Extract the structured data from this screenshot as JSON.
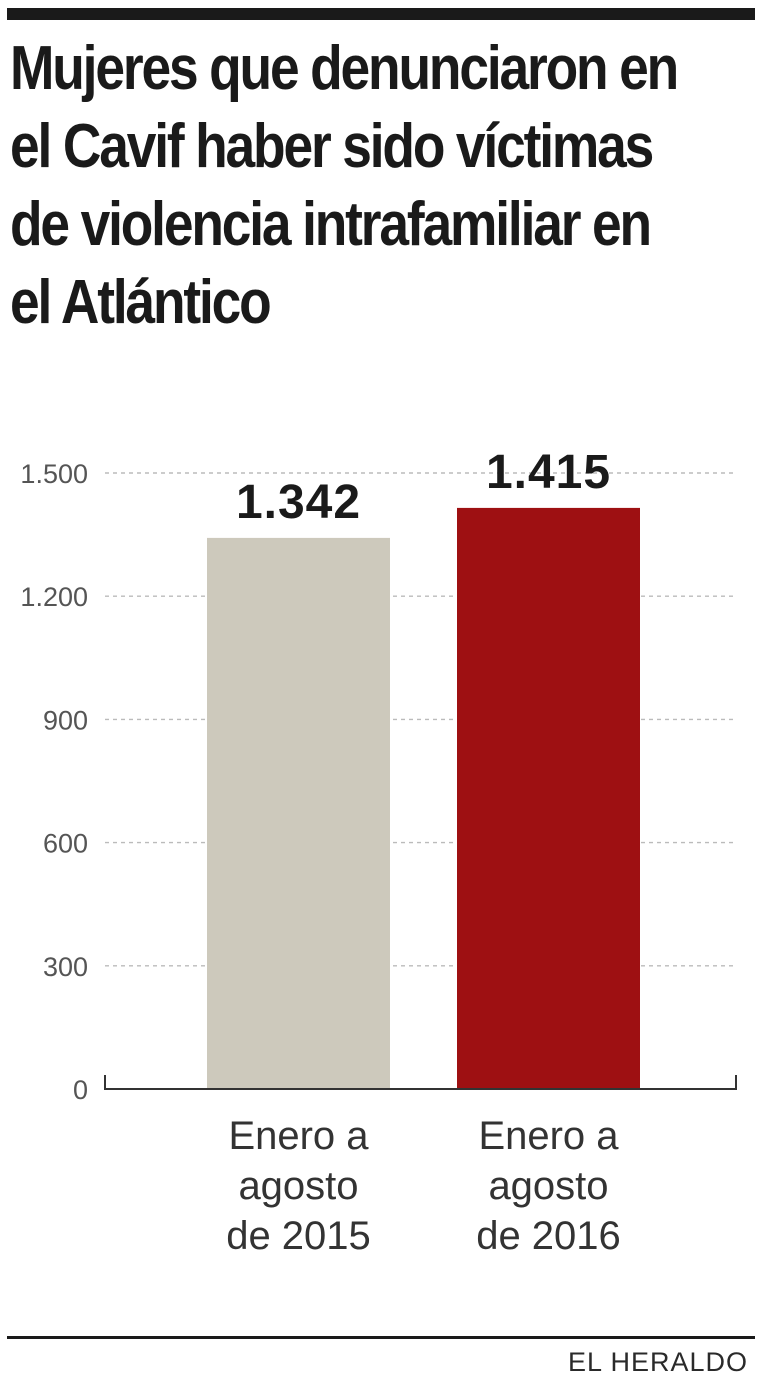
{
  "title_lines": [
    "Mujeres que denunciaron en",
    "el Cavif haber sido víctimas",
    "de violencia intrafamiliar en",
    "el Atlántico"
  ],
  "source": "EL HERALDO",
  "colors": {
    "bar_2015": "#cdc9bc",
    "bar_2016": "#9e1012",
    "text": "#1a1a1a",
    "tick": "#555555",
    "grid": "#bbbbbb"
  },
  "chart_data": {
    "type": "bar",
    "title": "Mujeres que denunciaron en el Cavif haber sido víctimas de violencia intrafamiliar en el Atlántico",
    "categories": [
      [
        "Enero a",
        "agosto",
        "de 2015"
      ],
      [
        "Enero a",
        "agosto",
        "de 2016"
      ]
    ],
    "values": [
      1342,
      1415
    ],
    "value_labels": [
      "1.342",
      "1.415"
    ],
    "ylim": [
      0,
      1500
    ],
    "yticks": [
      0,
      300,
      600,
      900,
      1200,
      1500
    ],
    "ytick_labels": [
      "0",
      "300",
      "600",
      "900",
      "1.200",
      "1.500"
    ],
    "grid": "dashed horizontal",
    "xlabel": "",
    "ylabel": ""
  }
}
